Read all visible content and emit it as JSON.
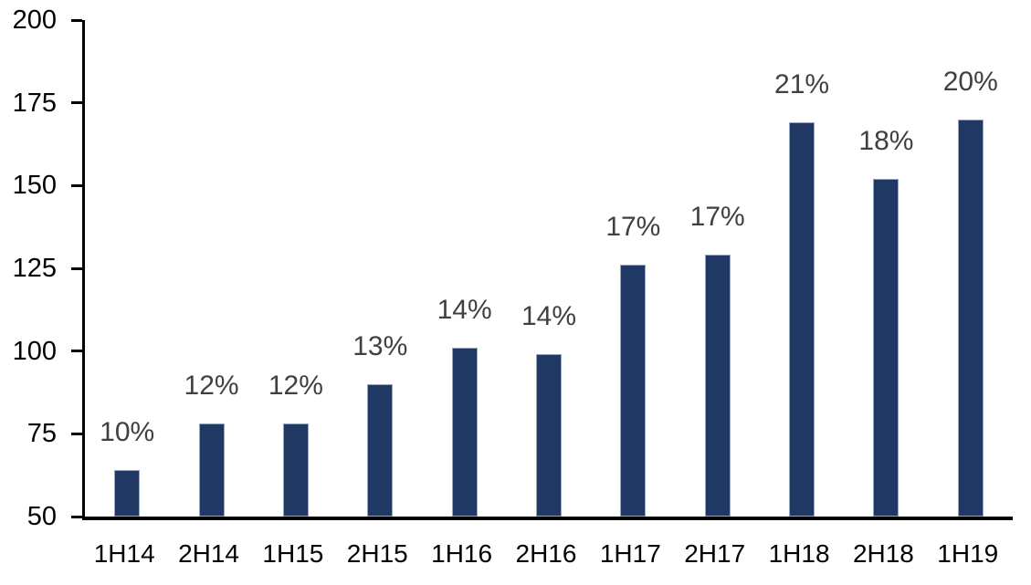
{
  "chart_data": {
    "type": "bar",
    "categories": [
      "1H14",
      "2H14",
      "1H15",
      "2H15",
      "1H16",
      "2H16",
      "1H17",
      "2H17",
      "1H18",
      "2H18",
      "1H19"
    ],
    "values": [
      64,
      78,
      78,
      90,
      101,
      99,
      126,
      129,
      169,
      152,
      170
    ],
    "bar_labels": [
      "10%",
      "12%",
      "12%",
      "13%",
      "14%",
      "14%",
      "17%",
      "17%",
      "21%",
      "18%",
      "20%"
    ],
    "title": "",
    "xlabel": "",
    "ylabel": "",
    "ylim": [
      50,
      200
    ],
    "y_ticks": [
      200,
      175,
      150,
      125,
      100,
      75,
      50
    ],
    "grid": "off",
    "legend": "none"
  },
  "colors": {
    "bar_fill": "#1F3864",
    "bar_edge": "#97A6BF",
    "data_label": "#404040",
    "axis_text": "#000000",
    "axis_line": "#000000",
    "background": "#FFFFFF"
  }
}
